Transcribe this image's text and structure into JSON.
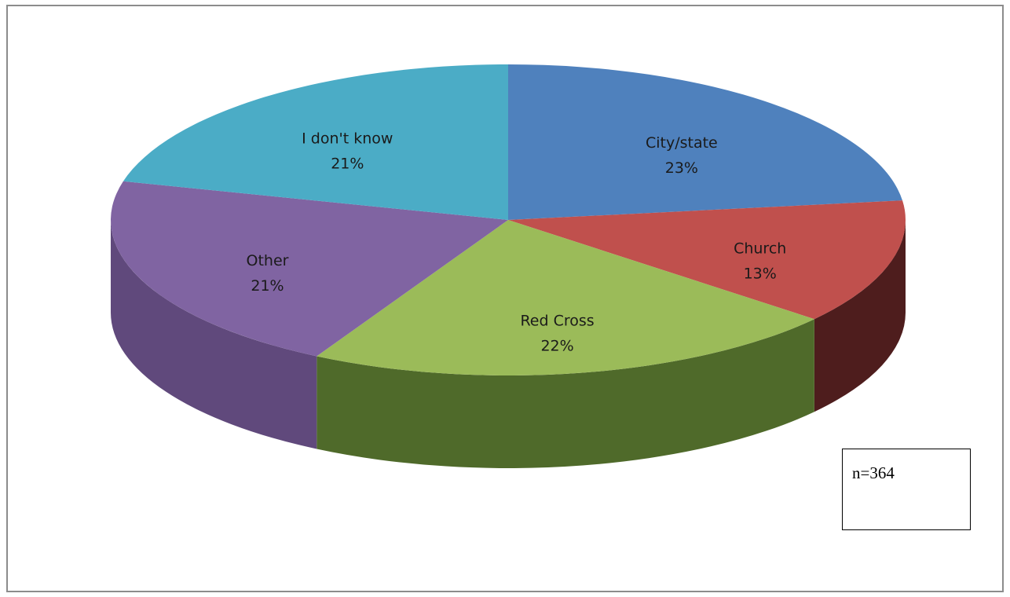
{
  "chart_data": {
    "type": "pie",
    "style": "3d",
    "title": "",
    "slices": [
      {
        "label": "City/state",
        "value": 23,
        "value_label": "23%",
        "color": "#4f81bd",
        "side_color": "#3a5f8c"
      },
      {
        "label": "Church",
        "value": 13,
        "value_label": "13%",
        "color": "#c0504d",
        "side_color": "#4e1d1d"
      },
      {
        "label": "Red Cross",
        "value": 22,
        "value_label": "22%",
        "color": "#9bbb59",
        "side_color": "#4f6a2a"
      },
      {
        "label": "Other",
        "value": 21,
        "value_label": "21%",
        "color": "#8064a2",
        "side_color": "#60497c"
      },
      {
        "label": "I don't know",
        "value": 21,
        "value_label": "21%",
        "color": "#4bacc6",
        "side_color": "#2f7d92"
      }
    ],
    "start_angle_deg": 0,
    "direction": "clockwise",
    "legend": "none"
  },
  "note": {
    "text": "n=364"
  }
}
